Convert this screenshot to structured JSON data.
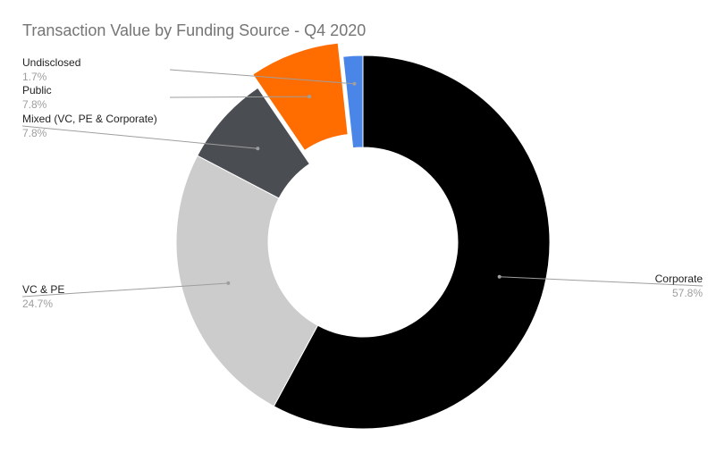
{
  "chart_data": {
    "type": "pie",
    "title": "Transaction Value by Funding Source - Q4 2020",
    "donut": true,
    "start_angle_deg": 0,
    "slices": [
      {
        "label": "Corporate",
        "value_label": "57.8%",
        "value": 57.8,
        "color": "#000000",
        "exploded": false
      },
      {
        "label": "VC & PE",
        "value_label": "24.7%",
        "value": 24.7,
        "color": "#cccccc",
        "exploded": false
      },
      {
        "label": "Mixed (VC, PE & Corporate)",
        "value_label": "7.8%",
        "value": 7.8,
        "color": "#4a4d52",
        "exploded": false
      },
      {
        "label": "Public",
        "value_label": "7.8%",
        "value": 7.8,
        "color": "#ff6d01",
        "exploded": true
      },
      {
        "label": "Undisclosed",
        "value_label": "1.7%",
        "value": 1.7,
        "color": "#4a86e8",
        "exploded": false
      }
    ]
  }
}
